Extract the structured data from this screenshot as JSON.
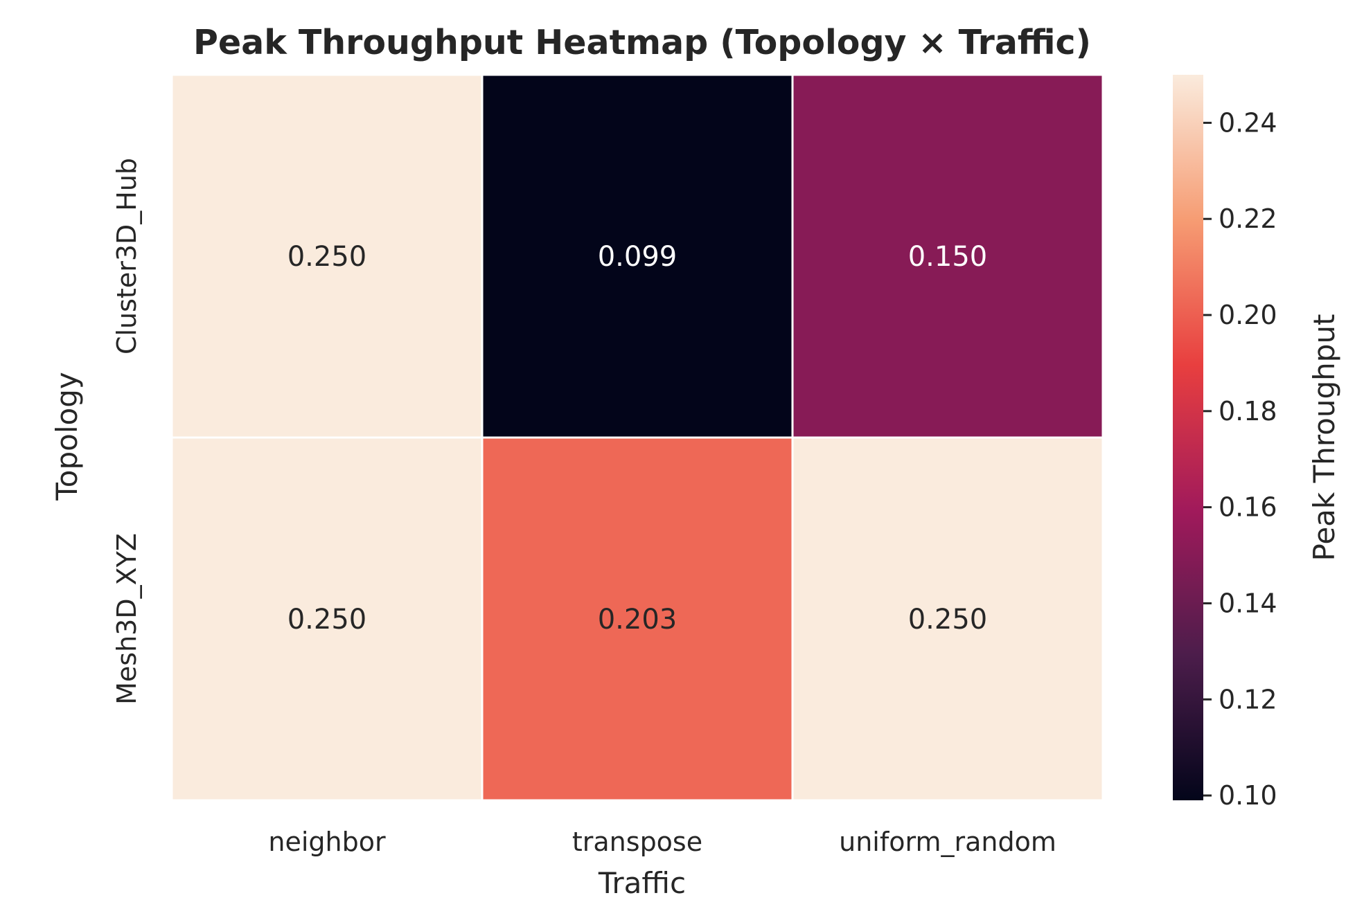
{
  "chart_data": {
    "type": "heatmap",
    "title": "Peak Throughput Heatmap (Topology × Traffic)",
    "xlabel": "Traffic",
    "ylabel": "Topology",
    "x_categories": [
      "neighbor",
      "transpose",
      "uniform_random"
    ],
    "y_categories": [
      "Cluster3D_Hub",
      "Mesh3D_XYZ"
    ],
    "values": [
      [
        0.25,
        0.099,
        0.15
      ],
      [
        0.25,
        0.203,
        0.25
      ]
    ],
    "cell_labels": [
      [
        "0.250",
        "0.099",
        "0.150"
      ],
      [
        "0.250",
        "0.203",
        "0.250"
      ]
    ],
    "colorbar": {
      "label": "Peak Throughput",
      "range": [
        0.099,
        0.25
      ],
      "ticks": [
        0.1,
        0.12,
        0.14,
        0.16,
        0.18,
        0.2,
        0.22,
        0.24
      ],
      "tick_labels": [
        "0.10",
        "0.12",
        "0.14",
        "0.16",
        "0.18",
        "0.20",
        "0.22",
        "0.24"
      ],
      "colormap": "rocket",
      "colormap_stops": [
        "#03051a",
        "#4c1d4b",
        "#a11a5b",
        "#e83f3f",
        "#f69c73",
        "#faebdd"
      ]
    },
    "grid": false
  }
}
